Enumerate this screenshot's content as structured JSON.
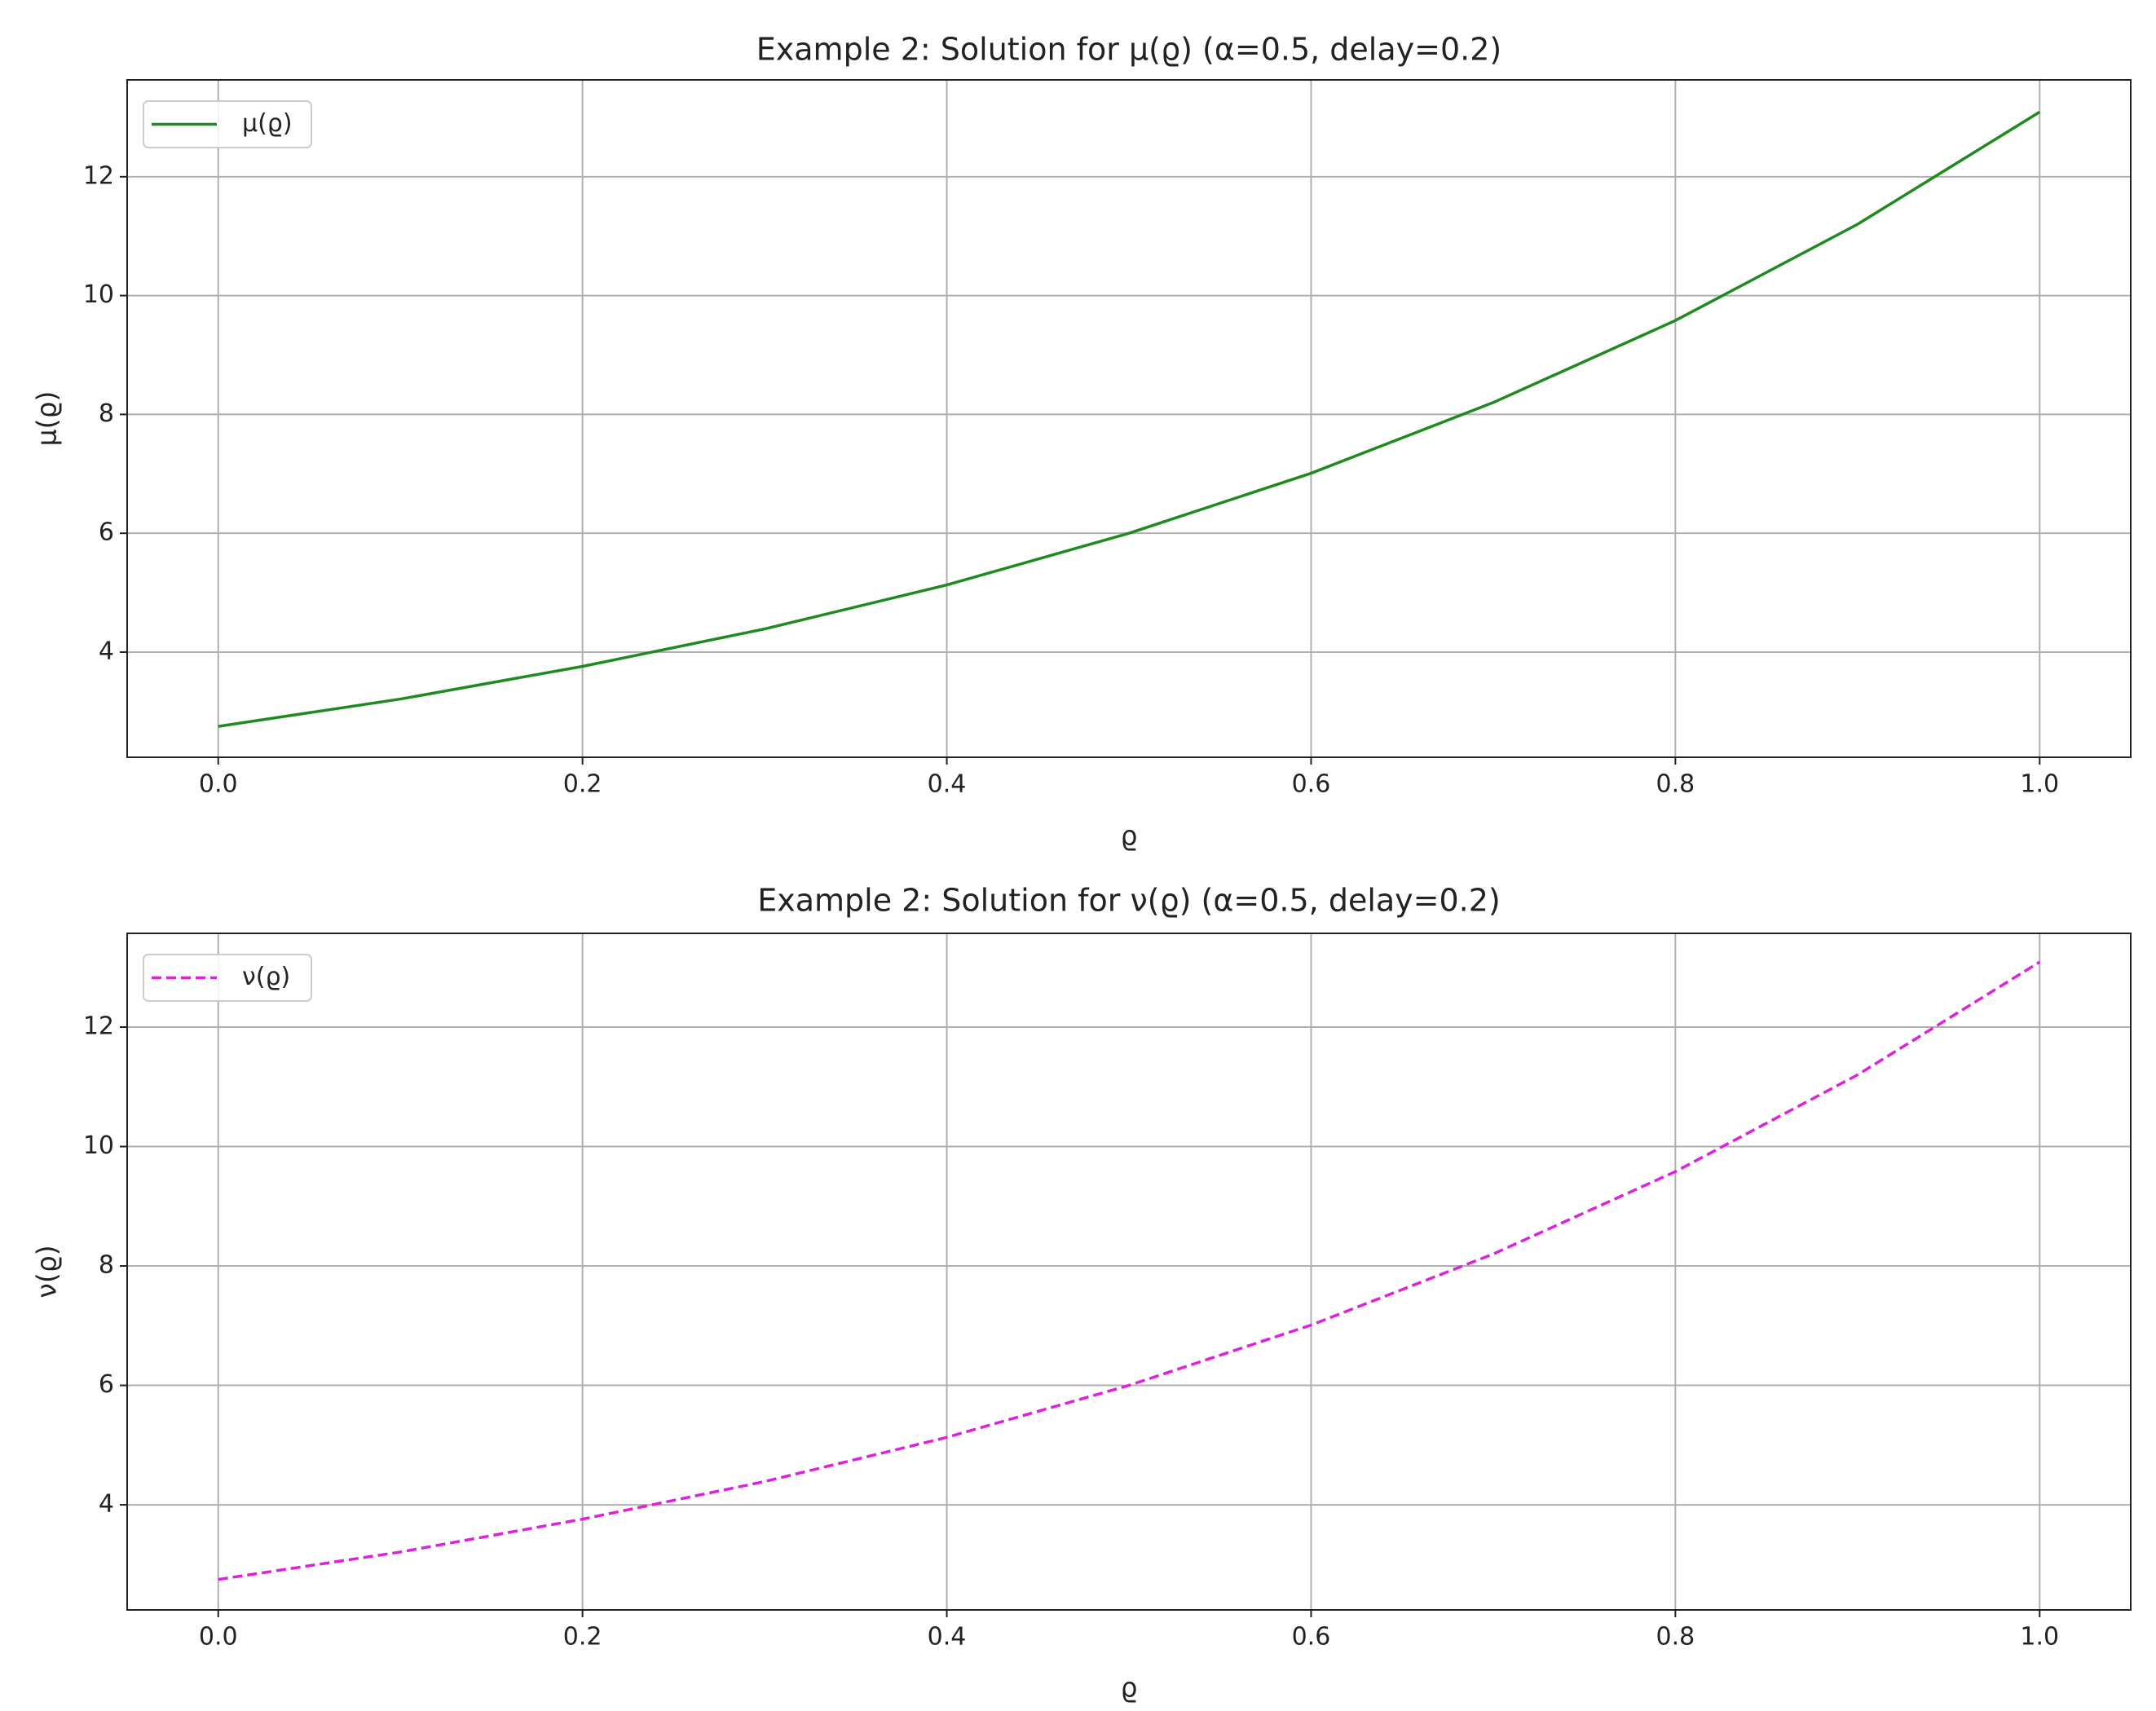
{
  "chart_data": [
    {
      "type": "line",
      "title": "Example 2: Solution for μ(ϱ) (α=0.5, delay=0.2)",
      "x_label": "ϱ",
      "y_label": "μ(ϱ)",
      "x": [
        0,
        0.1,
        0.2,
        0.3,
        0.4,
        0.5,
        0.6,
        0.7,
        0.8,
        0.9,
        1.0
      ],
      "series": [
        {
          "name": "μ(ϱ)",
          "color": "#1f8a1f",
          "linestyle": "solid",
          "values": [
            2.75,
            3.21,
            3.76,
            4.39,
            5.13,
            6.0,
            7.01,
            8.2,
            9.58,
            11.2,
            13.09
          ]
        }
      ],
      "xlim": [
        -0.05,
        1.05
      ],
      "ylim": [
        2.23,
        13.63
      ],
      "xticks": [
        {
          "value": 0,
          "label": "0.0"
        },
        0.2,
        0.4,
        0.6,
        0.8,
        {
          "value": 1,
          "label": "1.0"
        }
      ],
      "yticks": [
        4,
        6,
        8,
        10,
        12
      ],
      "grid": true,
      "legend": "upper left"
    },
    {
      "type": "line",
      "title": "Example 2: Solution for ν(ϱ) (α=0.5, delay=0.2)",
      "x_label": "ϱ",
      "y_label": "ν(ϱ)",
      "x": [
        0,
        0.1,
        0.2,
        0.3,
        0.4,
        0.5,
        0.6,
        0.7,
        0.8,
        0.9,
        1.0
      ],
      "series": [
        {
          "name": "ν(ϱ)",
          "color": "#dd22dd",
          "linestyle": "dashed",
          "values": [
            2.75,
            3.21,
            3.76,
            4.39,
            5.13,
            6.0,
            7.01,
            8.2,
            9.58,
            11.2,
            13.09
          ]
        }
      ],
      "xlim": [
        -0.05,
        1.05
      ],
      "ylim": [
        2.24,
        13.57
      ],
      "xticks": [
        {
          "value": 0,
          "label": "0.0"
        },
        0.2,
        0.4,
        0.6,
        0.8,
        {
          "value": 1,
          "label": "1.0"
        }
      ],
      "yticks": [
        4,
        6,
        8,
        10,
        12
      ],
      "grid": true,
      "legend": "upper left"
    }
  ]
}
